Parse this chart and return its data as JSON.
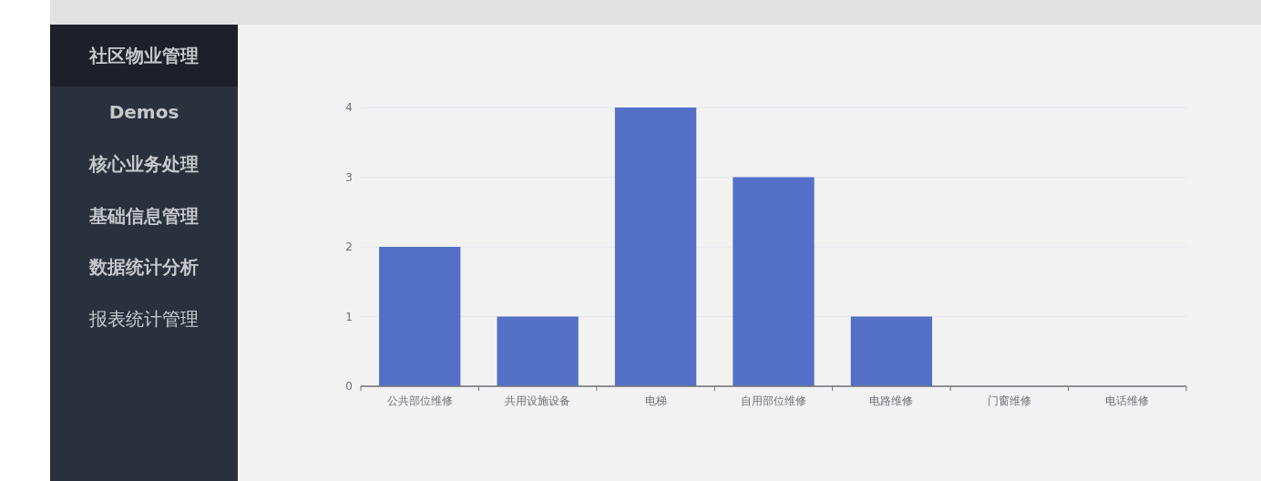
{
  "chart_data": [
    {
      "type": "other",
      "title": "社区物业管理",
      "annotations": [
        "Demos",
        "核心业务处理",
        "基础信息管理",
        "数据统计分析",
        "报表统计管理"
      ]
    },
    {
      "type": "bar",
      "categories": [
        "公共部位维修",
        "共用设施设备",
        "电梯",
        "自用部位维修",
        "电路维修",
        "门窗维修",
        "电话维修"
      ],
      "values": [
        2,
        1,
        4,
        3,
        1,
        0,
        0
      ],
      "color": "#5470c6",
      "ylim": [
        0,
        4
      ],
      "yticks": [
        0,
        1,
        2,
        3,
        4
      ],
      "grid": "y"
    }
  ]
}
